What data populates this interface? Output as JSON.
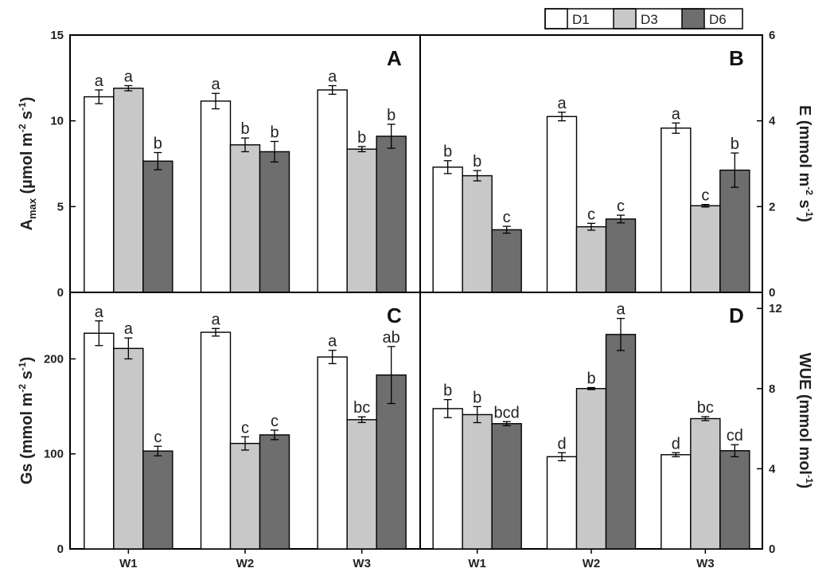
{
  "legend": [
    {
      "name": "D1",
      "color": "#ffffff"
    },
    {
      "name": "D3",
      "color": "#c8c8c8"
    },
    {
      "name": "D6",
      "color": "#6e6e6e"
    }
  ],
  "chart_data": [
    {
      "type": "bar",
      "panel": "A",
      "categories": [
        "W1",
        "W2",
        "W3"
      ],
      "ylabel_main": "A",
      "ylabel_sub": "max",
      "ylabel_rest": " (µmol m",
      "ylabel_sup1": "-2",
      "ylabel_mid": " s",
      "ylabel_sup2": "-1",
      "ylabel_end": ")",
      "ylim": [
        0,
        15
      ],
      "yticks": [
        0,
        5,
        10,
        15
      ],
      "series": [
        {
          "name": "D1",
          "values": [
            11.4,
            11.15,
            11.8
          ],
          "errors": [
            0.4,
            0.45,
            0.25
          ],
          "labels": [
            "a",
            "a",
            "a"
          ]
        },
        {
          "name": "D3",
          "values": [
            11.9,
            8.6,
            8.35
          ],
          "errors": [
            0.15,
            0.4,
            0.15
          ],
          "labels": [
            "a",
            "b",
            "b"
          ]
        },
        {
          "name": "D6",
          "values": [
            7.65,
            8.2,
            9.1
          ],
          "errors": [
            0.5,
            0.6,
            0.7
          ],
          "labels": [
            "b",
            "b",
            "b"
          ]
        }
      ]
    },
    {
      "type": "bar",
      "panel": "B",
      "categories": [
        "W1",
        "W2",
        "W3"
      ],
      "ylabel_main": "E (mmol m",
      "ylabel_sup1": "-2",
      "ylabel_mid": " s",
      "ylabel_sup2": "-1",
      "ylabel_end": ")",
      "ylim": [
        0,
        6
      ],
      "yticks": [
        0,
        2,
        4,
        6
      ],
      "series": [
        {
          "name": "D1",
          "values": [
            2.92,
            4.1,
            3.83
          ],
          "errors": [
            0.15,
            0.1,
            0.12
          ],
          "labels": [
            "b",
            "a",
            "a"
          ]
        },
        {
          "name": "D3",
          "values": [
            2.72,
            1.53,
            2.02
          ],
          "errors": [
            0.12,
            0.08,
            0.03
          ],
          "labels": [
            "b",
            "c",
            "c"
          ]
        },
        {
          "name": "D6",
          "values": [
            1.46,
            1.71,
            2.85
          ],
          "errors": [
            0.08,
            0.09,
            0.4
          ],
          "labels": [
            "c",
            "c",
            "b"
          ]
        }
      ]
    },
    {
      "type": "bar",
      "panel": "C",
      "categories": [
        "W1",
        "W2",
        "W3"
      ],
      "ylabel_main": "Gs (mmol m",
      "ylabel_sup1": "-2",
      "ylabel_mid": " s",
      "ylabel_sup2": "-1",
      "ylabel_end": ")",
      "ylim": [
        0,
        270
      ],
      "yticks": [
        0,
        100,
        200
      ],
      "series": [
        {
          "name": "D1",
          "values": [
            227,
            228,
            202
          ],
          "errors": [
            13,
            4,
            7
          ],
          "labels": [
            "a",
            "a",
            "a"
          ]
        },
        {
          "name": "D3",
          "values": [
            211,
            111,
            136
          ],
          "errors": [
            11,
            7,
            3
          ],
          "labels": [
            "a",
            "c",
            "bc"
          ]
        },
        {
          "name": "D6",
          "values": [
            103,
            120,
            183
          ],
          "errors": [
            5,
            5,
            30
          ],
          "labels": [
            "c",
            "c",
            "ab"
          ]
        }
      ]
    },
    {
      "type": "bar",
      "panel": "D",
      "categories": [
        "W1",
        "W2",
        "W3"
      ],
      "ylabel_main": "WUE (mmol mol",
      "ylabel_sup1": "-1",
      "ylabel_end": ")",
      "ylim": [
        0,
        12.8
      ],
      "yticks": [
        0,
        4,
        8,
        12
      ],
      "series": [
        {
          "name": "D1",
          "values": [
            7.0,
            4.6,
            4.7
          ],
          "errors": [
            0.45,
            0.2,
            0.1
          ],
          "labels": [
            "b",
            "d",
            "d"
          ]
        },
        {
          "name": "D3",
          "values": [
            6.7,
            8.0,
            6.5
          ],
          "errors": [
            0.4,
            0.05,
            0.1
          ],
          "labels": [
            "b",
            "b",
            "bc"
          ]
        },
        {
          "name": "D6",
          "values": [
            6.25,
            10.7,
            4.9
          ],
          "errors": [
            0.1,
            0.8,
            0.3
          ],
          "labels": [
            "bcd",
            "a",
            "cd"
          ]
        }
      ]
    }
  ]
}
